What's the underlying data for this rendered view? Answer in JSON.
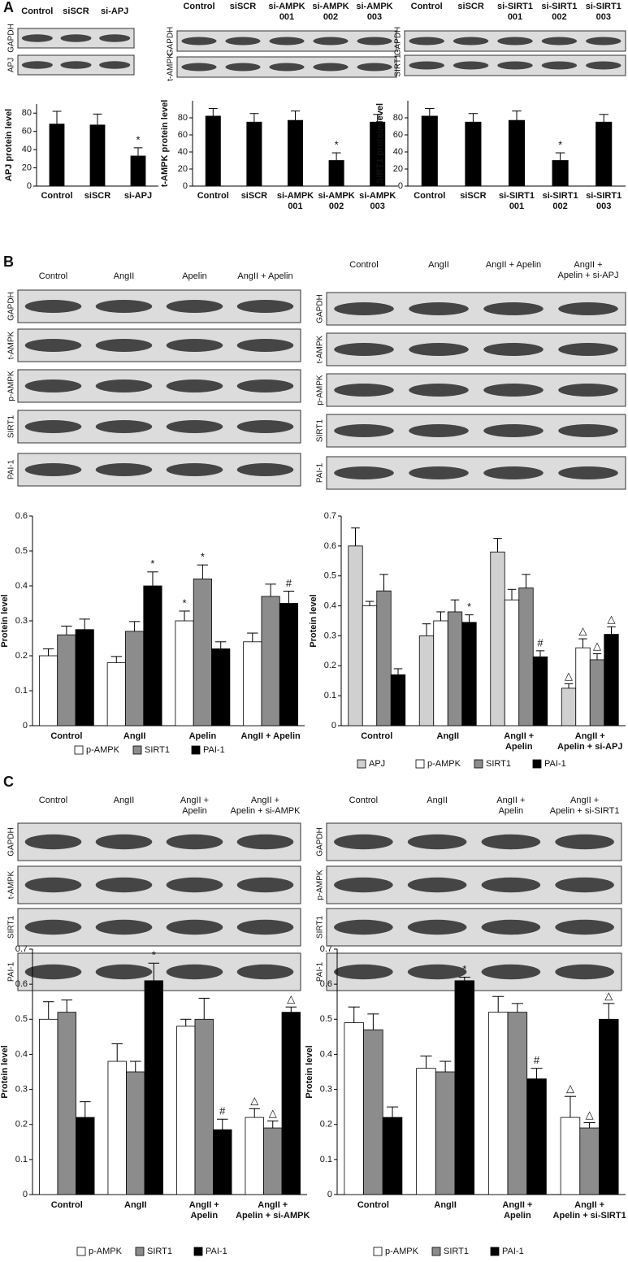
{
  "panels": [
    "A",
    "B",
    "C"
  ],
  "blots": [
    {
      "lanes": [
        "Control",
        "siSCR",
        "si-APJ"
      ],
      "rows": [
        "GAPDH",
        "APJ"
      ]
    },
    {
      "lanes": [
        "Control",
        "siSCR",
        [
          "si-AMPK",
          "001"
        ],
        [
          "si-AMPK",
          "002"
        ],
        [
          "si-AMPK",
          "003"
        ]
      ],
      "rows": [
        "GAPDH",
        "t-AMPK"
      ]
    },
    {
      "lanes": [
        "Control",
        "siSCR",
        [
          "si-SIRT1",
          "001"
        ],
        [
          "si-SIRT1",
          "002"
        ],
        [
          "si-SIRT1",
          "003"
        ]
      ],
      "rows": [
        "GAPDH",
        "SIRT1"
      ]
    },
    {
      "lanes": [
        "Control",
        "AngII",
        "Apelin",
        "AngII + Apelin"
      ],
      "rows": [
        "GAPDH",
        "t-AMPK",
        "p-AMPK",
        "SIRT1",
        "PAI-1"
      ]
    },
    {
      "lanes": [
        "Control",
        "AngII",
        "AngII + Apelin",
        [
          "AngII +",
          "Apelin + si-APJ"
        ]
      ],
      "rows": [
        "GAPDH",
        "t-AMPK",
        "p-AMPK",
        "SIRT1",
        "PAI-1"
      ]
    },
    {
      "lanes": [
        "Control",
        "AngII",
        [
          "AngII +",
          "Apelin"
        ],
        [
          "AngII +",
          "Apelin + si-AMPK"
        ]
      ],
      "rows": [
        "GAPDH",
        "t-AMPK",
        "SIRT1",
        "PAI-1"
      ]
    },
    {
      "lanes": [
        "Control",
        "AngII",
        [
          "AngII +",
          "Apelin"
        ],
        [
          "AngII +",
          "Apelin + si-SIRT1"
        ]
      ],
      "rows": [
        "GAPDH",
        "p-AMPK",
        "SIRT1",
        "PAI-1"
      ]
    }
  ],
  "chart_data": [
    {
      "type": "bar",
      "ylabel": "APJ protein level",
      "categories": [
        "Control",
        "siSCR",
        "si-APJ"
      ],
      "values": [
        68,
        67,
        33
      ],
      "errors": [
        14,
        12,
        9
      ],
      "marks": [
        null,
        null,
        "*"
      ],
      "color": "#000000",
      "ylim": [
        0,
        90
      ],
      "yticks": [
        0,
        20,
        40,
        60,
        80
      ]
    },
    {
      "type": "bar",
      "ylabel": "t-AMPK protein level",
      "categories": [
        "Control",
        "siSCR",
        [
          "si-AMPK",
          "001"
        ],
        [
          "si-AMPK",
          "002"
        ],
        [
          "si-AMPK",
          "003"
        ]
      ],
      "values": [
        82,
        75,
        77,
        30,
        75
      ],
      "errors": [
        9,
        10,
        11,
        9,
        9
      ],
      "marks": [
        null,
        null,
        null,
        "*",
        null
      ],
      "color": "#000000",
      "ylim": [
        0,
        100
      ],
      "yticks": [
        0,
        20,
        40,
        60,
        80
      ]
    },
    {
      "type": "bar",
      "ylabel": "SIRT1 protein level",
      "categories": [
        "Control",
        "siSCR",
        [
          "si-SIRT1",
          "001"
        ],
        [
          "si-SIRT1",
          "002"
        ],
        [
          "si-SIRT1",
          "003"
        ]
      ],
      "values": [
        82,
        75,
        77,
        30,
        75
      ],
      "errors": [
        9,
        10,
        11,
        9,
        9
      ],
      "marks": [
        null,
        null,
        null,
        "*",
        null
      ],
      "color": "#000000",
      "ylim": [
        0,
        100
      ],
      "yticks": [
        0,
        20,
        40,
        60,
        80
      ]
    },
    {
      "type": "bar",
      "ylabel": "Protein level",
      "categories": [
        "Control",
        "AngII",
        "Apelin",
        "AngII + Apelin"
      ],
      "series": [
        {
          "name": "p-AMPK",
          "color": "#ffffff",
          "values": [
            0.2,
            0.18,
            0.3,
            0.24
          ],
          "errors": [
            0.02,
            0.018,
            0.028,
            0.025
          ],
          "marks": [
            null,
            null,
            "*",
            null
          ]
        },
        {
          "name": "SIRT1",
          "color": "#8c8c8c",
          "values": [
            0.26,
            0.27,
            0.42,
            0.37
          ],
          "errors": [
            0.025,
            0.028,
            0.04,
            0.035
          ],
          "marks": [
            null,
            null,
            "*",
            null
          ]
        },
        {
          "name": "PAI-1",
          "color": "#000000",
          "values": [
            0.275,
            0.4,
            0.22,
            0.35
          ],
          "errors": [
            0.03,
            0.04,
            0.02,
            0.035
          ],
          "marks": [
            null,
            "*",
            null,
            "#"
          ]
        }
      ],
      "ylim": [
        0,
        0.6
      ],
      "yticks": [
        0,
        0.1,
        0.2,
        0.3,
        0.4,
        0.5,
        0.6
      ],
      "legend": "bottom"
    },
    {
      "type": "bar",
      "ylabel": "Protein level",
      "categories": [
        "Control",
        "AngII",
        [
          "AngII +",
          "Apelin"
        ],
        [
          "AngII +",
          "Apelin + si-APJ"
        ]
      ],
      "series": [
        {
          "name": "APJ",
          "color": "#d0d0d0",
          "values": [
            0.6,
            0.3,
            0.58,
            0.125
          ],
          "errors": [
            0.06,
            0.04,
            0.045,
            0.015
          ],
          "marks": [
            null,
            null,
            null,
            "△"
          ]
        },
        {
          "name": "p-AMPK",
          "color": "#ffffff",
          "values": [
            0.4,
            0.35,
            0.42,
            0.26
          ],
          "errors": [
            0.015,
            0.03,
            0.035,
            0.03
          ],
          "marks": [
            null,
            null,
            null,
            "△"
          ]
        },
        {
          "name": "SIRT1",
          "color": "#8c8c8c",
          "values": [
            0.45,
            0.38,
            0.46,
            0.22
          ],
          "errors": [
            0.055,
            0.04,
            0.045,
            0.02
          ],
          "marks": [
            null,
            null,
            null,
            "△"
          ]
        },
        {
          "name": "PAI-1",
          "color": "#000000",
          "values": [
            0.17,
            0.345,
            0.23,
            0.305
          ],
          "errors": [
            0.02,
            0.025,
            0.02,
            0.025
          ],
          "marks": [
            null,
            "*",
            "#",
            "△"
          ]
        }
      ],
      "ylim": [
        0,
        0.7
      ],
      "yticks": [
        0,
        0.1,
        0.2,
        0.3,
        0.4,
        0.5,
        0.6,
        0.7
      ],
      "legend": "bottom"
    },
    {
      "type": "bar",
      "ylabel": "Protein level",
      "categories": [
        "Control",
        "AngII",
        [
          "AngII +",
          "Apelin"
        ],
        [
          "AngII +",
          "Apelin + si-AMPK"
        ]
      ],
      "series": [
        {
          "name": "p-AMPK",
          "color": "#ffffff",
          "values": [
            0.5,
            0.38,
            0.48,
            0.22
          ],
          "errors": [
            0.05,
            0.05,
            0.02,
            0.025
          ],
          "marks": [
            null,
            null,
            null,
            "△"
          ]
        },
        {
          "name": "SIRT1",
          "color": "#8c8c8c",
          "values": [
            0.52,
            0.35,
            0.5,
            0.19
          ],
          "errors": [
            0.035,
            0.03,
            0.06,
            0.02
          ],
          "marks": [
            null,
            null,
            null,
            "△"
          ]
        },
        {
          "name": "PAI-1",
          "color": "#000000",
          "values": [
            0.22,
            0.61,
            0.185,
            0.52
          ],
          "errors": [
            0.045,
            0.05,
            0.03,
            0.015
          ],
          "marks": [
            null,
            "*",
            "#",
            "△"
          ]
        }
      ],
      "ylim": [
        0,
        0.7
      ],
      "yticks": [
        0,
        0.1,
        0.2,
        0.3,
        0.4,
        0.5,
        0.6,
        0.7
      ],
      "legend": "bottom"
    },
    {
      "type": "bar",
      "ylabel": "Protein level",
      "categories": [
        "Control",
        "AngII",
        [
          "AngII +",
          "Apelin"
        ],
        [
          "AngII +",
          "Apelin + si-SIRT1"
        ]
      ],
      "series": [
        {
          "name": "p-AMPK",
          "color": "#ffffff",
          "values": [
            0.49,
            0.36,
            0.52,
            0.22
          ],
          "errors": [
            0.045,
            0.035,
            0.045,
            0.06
          ],
          "marks": [
            null,
            null,
            null,
            "△"
          ]
        },
        {
          "name": "SIRT1",
          "color": "#8c8c8c",
          "values": [
            0.47,
            0.35,
            0.52,
            0.19
          ],
          "errors": [
            0.045,
            0.03,
            0.025,
            0.015
          ],
          "marks": [
            null,
            null,
            null,
            "△"
          ]
        },
        {
          "name": "PAI-1",
          "color": "#000000",
          "values": [
            0.22,
            0.61,
            0.33,
            0.5
          ],
          "errors": [
            0.03,
            0.01,
            0.03,
            0.045
          ],
          "marks": [
            null,
            "*",
            "#",
            "△"
          ]
        }
      ],
      "ylim": [
        0,
        0.7
      ],
      "yticks": [
        0,
        0.1,
        0.2,
        0.3,
        0.4,
        0.5,
        0.6,
        0.7
      ],
      "legend": "bottom"
    }
  ]
}
